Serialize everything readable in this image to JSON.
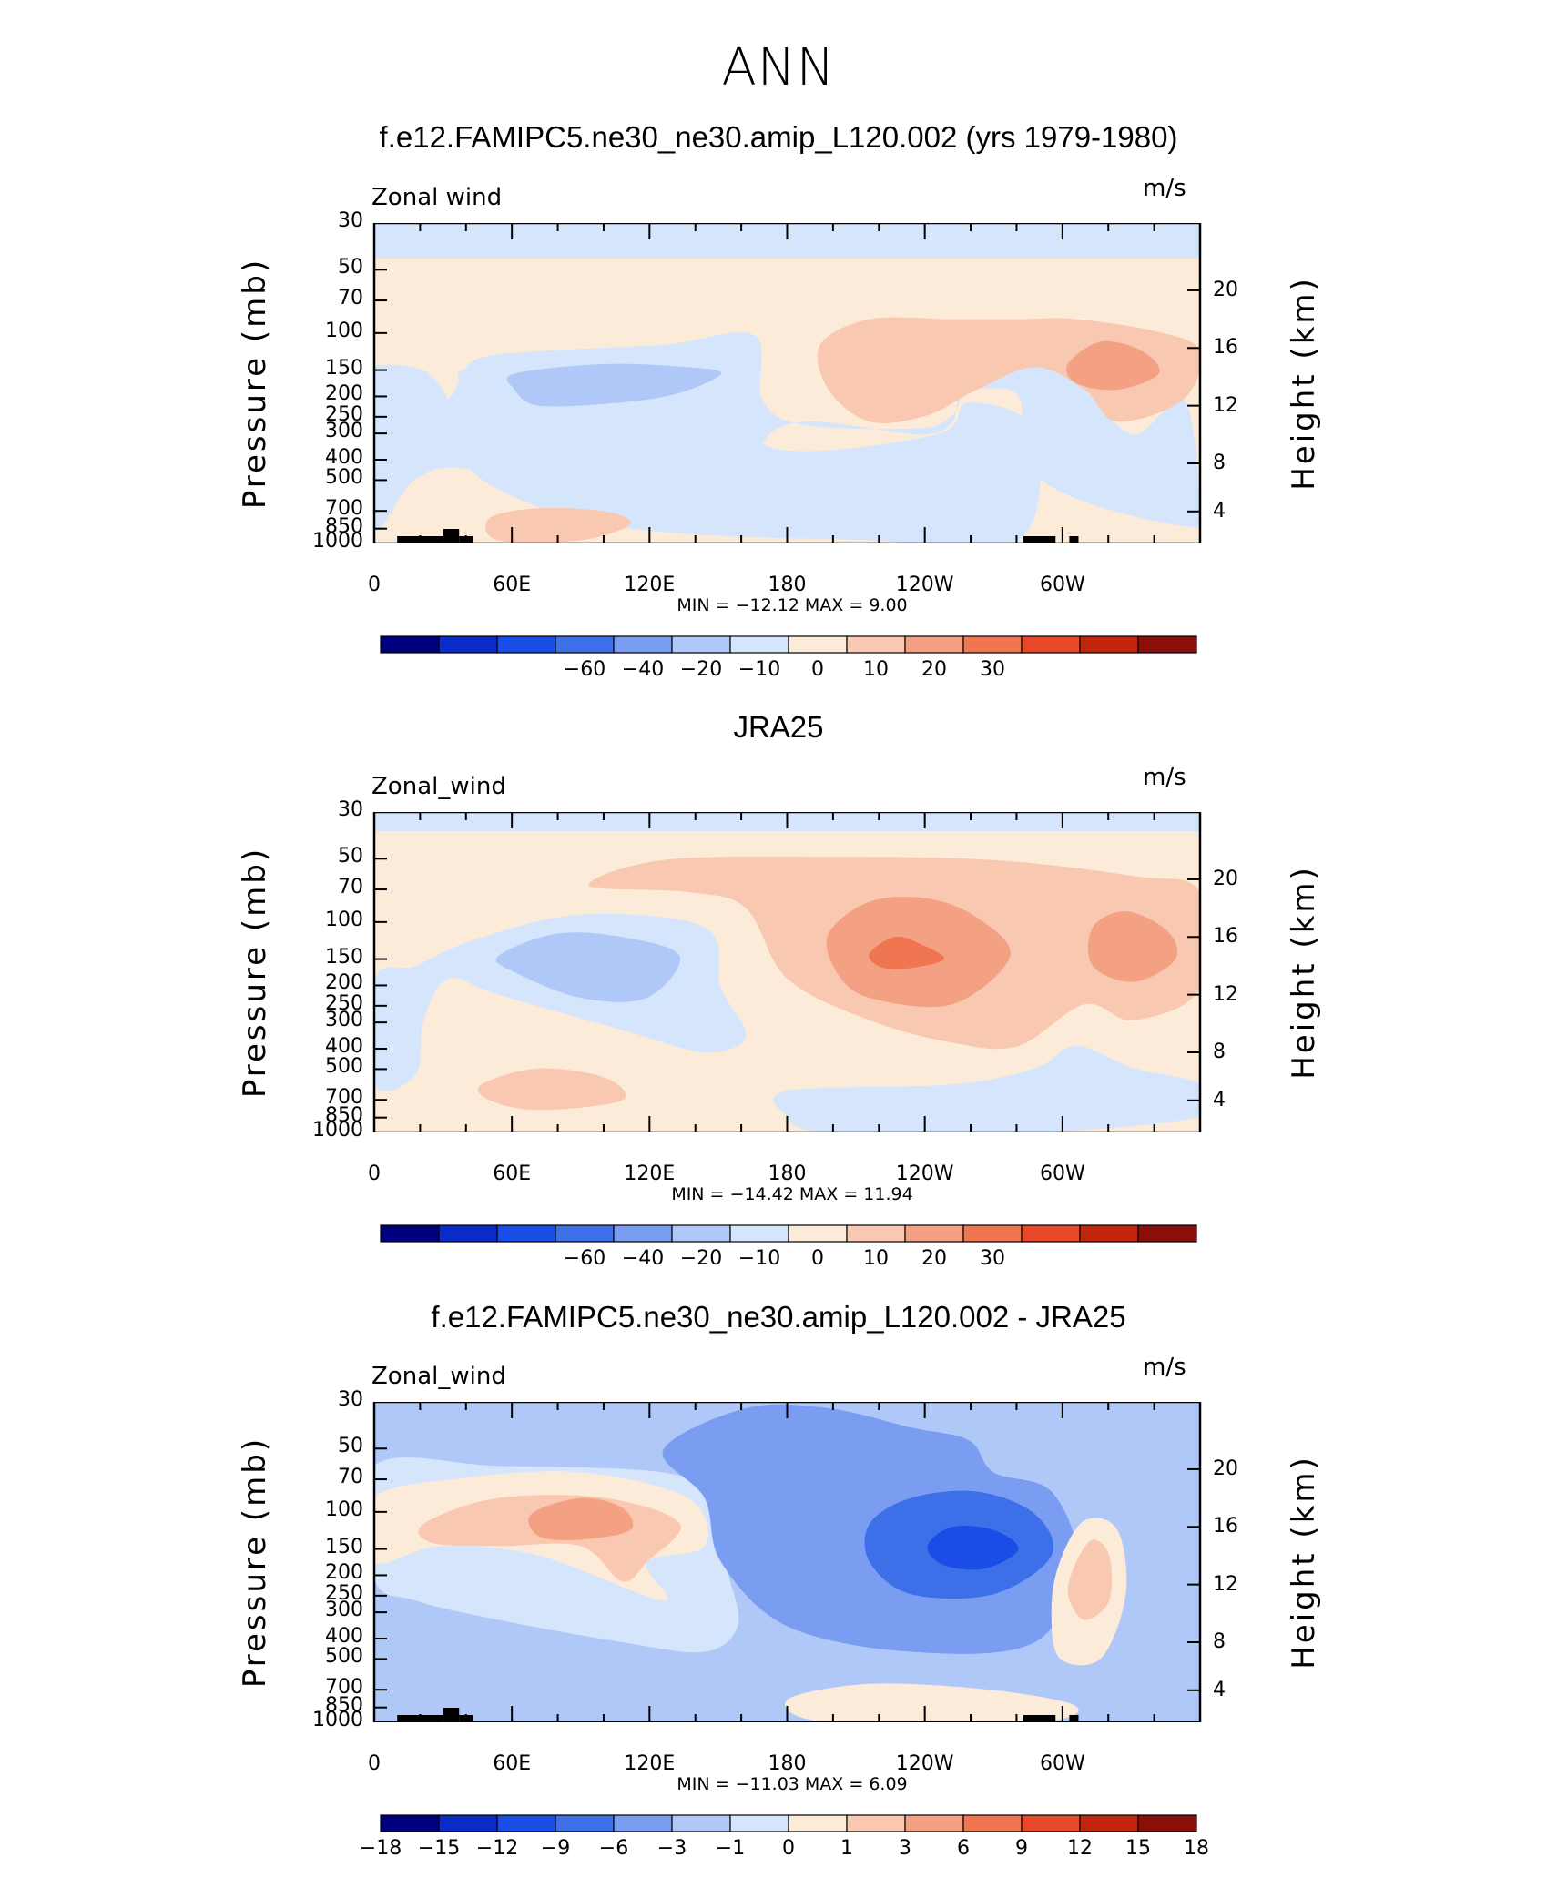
{
  "title": "ANN",
  "chart_data": [
    {
      "type": "heatmap",
      "title": "f.e12.FAMIPC5.ne30_ne30.amip_L120.002 (yrs 1979-1980)",
      "field_label": "Zonal wind",
      "units": "m/s",
      "ylabel": "Pressure (mb)",
      "ylabel_right": "Height (km)",
      "xlabel": "",
      "x_ticks": [
        "0",
        "60E",
        "120E",
        "180",
        "120W",
        "60W"
      ],
      "x_values": [
        0,
        60,
        120,
        180,
        240,
        300
      ],
      "xlim": [
        0,
        360
      ],
      "y_ticks": [
        "30",
        "50",
        "70",
        "100",
        "150",
        "200",
        "250",
        "300",
        "400",
        "500",
        "700",
        "850",
        "1000"
      ],
      "y_values": [
        30,
        50,
        70,
        100,
        150,
        200,
        250,
        300,
        400,
        500,
        700,
        850,
        1000
      ],
      "ylim": [
        1000,
        30
      ],
      "height_ticks": [
        "20",
        "16",
        "12",
        "8",
        "4"
      ],
      "stats": "MIN = −12.12   MAX =    9.00",
      "colorbar": {
        "labels": [
          "−60",
          "−40",
          "−20",
          "−10",
          "0",
          "10",
          "20",
          "30"
        ],
        "colors": [
          "#00007f",
          "#0a2bc8",
          "#1a4de6",
          "#3d6fe8",
          "#7a9df2",
          "#b0c8f8",
          "#d5e6fc",
          "#fdebd9",
          "#f9c8b0",
          "#f4a183",
          "#ef7650",
          "#e8492b",
          "#c3260f",
          "#8a0f0a"
        ]
      }
    },
    {
      "type": "heatmap",
      "title": "JRA25",
      "field_label": "Zonal_wind",
      "units": "m/s",
      "ylabel": "Pressure (mb)",
      "ylabel_right": "Height (km)",
      "x_ticks": [
        "0",
        "60E",
        "120E",
        "180",
        "120W",
        "60W"
      ],
      "x_values": [
        0,
        60,
        120,
        180,
        240,
        300
      ],
      "xlim": [
        0,
        360
      ],
      "y_ticks": [
        "30",
        "50",
        "70",
        "100",
        "150",
        "200",
        "250",
        "300",
        "400",
        "500",
        "700",
        "850",
        "1000"
      ],
      "y_values": [
        30,
        50,
        70,
        100,
        150,
        200,
        250,
        300,
        400,
        500,
        700,
        850,
        1000
      ],
      "ylim": [
        1000,
        30
      ],
      "height_ticks": [
        "20",
        "16",
        "12",
        "8",
        "4"
      ],
      "stats": "MIN = −14.42   MAX =   11.94",
      "colorbar": {
        "labels": [
          "−60",
          "−40",
          "−20",
          "−10",
          "0",
          "10",
          "20",
          "30"
        ],
        "colors": [
          "#00007f",
          "#0a2bc8",
          "#1a4de6",
          "#3d6fe8",
          "#7a9df2",
          "#b0c8f8",
          "#d5e6fc",
          "#fdebd9",
          "#f9c8b0",
          "#f4a183",
          "#ef7650",
          "#e8492b",
          "#c3260f",
          "#8a0f0a"
        ]
      }
    },
    {
      "type": "heatmap",
      "title": "f.e12.FAMIPC5.ne30_ne30.amip_L120.002 - JRA25",
      "field_label": "Zonal_wind",
      "units": "m/s",
      "ylabel": "Pressure (mb)",
      "ylabel_right": "Height (km)",
      "x_ticks": [
        "0",
        "60E",
        "120E",
        "180",
        "120W",
        "60W"
      ],
      "x_values": [
        0,
        60,
        120,
        180,
        240,
        300
      ],
      "xlim": [
        0,
        360
      ],
      "y_ticks": [
        "30",
        "50",
        "70",
        "100",
        "150",
        "200",
        "250",
        "300",
        "400",
        "500",
        "700",
        "850",
        "1000"
      ],
      "y_values": [
        30,
        50,
        70,
        100,
        150,
        200,
        250,
        300,
        400,
        500,
        700,
        850,
        1000
      ],
      "ylim": [
        1000,
        30
      ],
      "height_ticks": [
        "20",
        "16",
        "12",
        "8",
        "4"
      ],
      "stats": "MIN = −11.03   MAX =    6.09",
      "colorbar": {
        "labels": [
          "−18",
          "−15",
          "−12",
          "−9",
          "−6",
          "−3",
          "−1",
          "0",
          "1",
          "3",
          "6",
          "9",
          "12",
          "15",
          "18"
        ],
        "colors": [
          "#00007f",
          "#0a2bc8",
          "#1a4de6",
          "#3d6fe8",
          "#7a9df2",
          "#b0c8f8",
          "#d5e6fc",
          "#fdebd9",
          "#f9c8b0",
          "#f4a183",
          "#ef7650",
          "#e8492b",
          "#c3260f",
          "#8a0f0a"
        ]
      }
    }
  ]
}
